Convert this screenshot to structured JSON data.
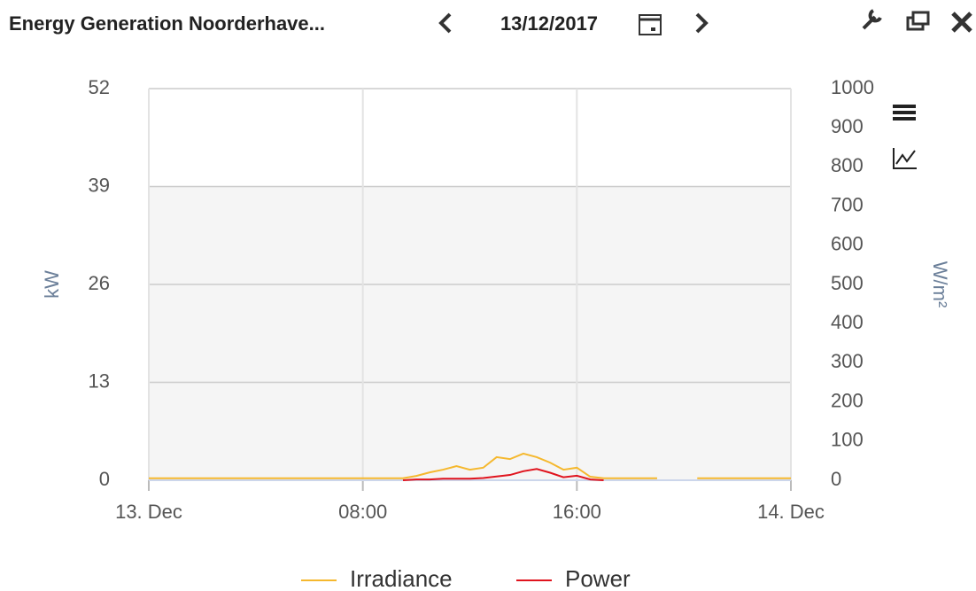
{
  "header": {
    "title": "Energy Generation Noorderhave...",
    "date": "13/12/2017"
  },
  "chart_data": {
    "type": "line",
    "y_label": "kW",
    "y2_label": "W/m²",
    "x": [
      0,
      0.5,
      1,
      1.5,
      2,
      2.5,
      3,
      3.5,
      4,
      4.5,
      5,
      5.5,
      6,
      6.5,
      7,
      7.5,
      8,
      8.5,
      9,
      9.5,
      10,
      10.5,
      11,
      11.5,
      12,
      12.5,
      13,
      13.5,
      14,
      14.5,
      15,
      15.5,
      16,
      16.5,
      17,
      17.5,
      18,
      18.5,
      19,
      19.5,
      20,
      20.5,
      21,
      21.5,
      22,
      22.5,
      23,
      23.5,
      24
    ],
    "xlim": [
      0,
      24
    ],
    "xticks": [
      {
        "value": 0,
        "label": "13. Dec"
      },
      {
        "value": 8,
        "label": "08:00"
      },
      {
        "value": 16,
        "label": "16:00"
      },
      {
        "value": 24,
        "label": "14. Dec"
      }
    ],
    "ylim": [
      0,
      52
    ],
    "yticks": [
      0,
      13,
      26,
      39,
      52
    ],
    "y2lim": [
      0,
      1000
    ],
    "y2ticks": [
      0,
      100,
      200,
      300,
      400,
      500,
      600,
      700,
      800,
      900,
      1000
    ],
    "grid": true,
    "legend": "bottom",
    "series": [
      {
        "name": "Irradiance",
        "color": "#f5b82e",
        "axis": "y2",
        "values": [
          5,
          5,
          5,
          5,
          5,
          5,
          5,
          5,
          5,
          5,
          5,
          5,
          5,
          5,
          5,
          5,
          5,
          5,
          5,
          5,
          11,
          20,
          27,
          36,
          27,
          32,
          59,
          54,
          68,
          59,
          45,
          27,
          32,
          9,
          5,
          5,
          5,
          5,
          5,
          null,
          null,
          5,
          5,
          5,
          5,
          5,
          5,
          5,
          5
        ]
      },
      {
        "name": "Power",
        "color": "#e0141e",
        "values": [
          null,
          null,
          null,
          null,
          null,
          null,
          null,
          null,
          null,
          null,
          null,
          null,
          null,
          null,
          null,
          null,
          null,
          null,
          null,
          0,
          0.1,
          0.1,
          0.2,
          0.2,
          0.2,
          0.3,
          0.5,
          0.7,
          1.2,
          1.5,
          1.0,
          0.4,
          0.6,
          0.1,
          0,
          null,
          null,
          null,
          null,
          null,
          null,
          null,
          null,
          null,
          null,
          null,
          null,
          null,
          null
        ]
      }
    ]
  }
}
